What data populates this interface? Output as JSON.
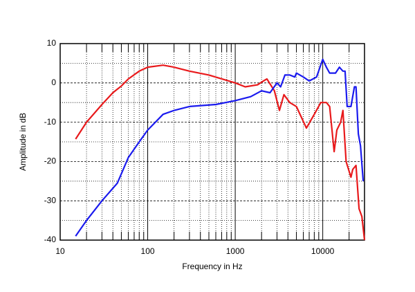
{
  "chart_data": {
    "type": "line",
    "x_label": "Frequency in Hz",
    "y_label": "Amplitude in dB",
    "log_x": true,
    "xlim": [
      10,
      30000
    ],
    "ylim": [
      -40,
      10
    ],
    "xticks": [
      10,
      100,
      1000,
      10000
    ],
    "yticks": [
      -40,
      -30,
      -20,
      -10,
      0,
      10
    ],
    "minor_xticks": [
      20,
      30,
      40,
      50,
      60,
      70,
      80,
      90,
      200,
      300,
      400,
      500,
      600,
      700,
      800,
      900,
      2000,
      3000,
      4000,
      5000,
      6000,
      7000,
      8000,
      9000,
      20000
    ],
    "minor_yticks": [
      -35,
      -25,
      -15,
      -5,
      5
    ],
    "grid": true,
    "series": [
      {
        "color": "#e8191b",
        "x": [
          15,
          20,
          30,
          40,
          50,
          60,
          80,
          100,
          150,
          200,
          300,
          500,
          1000,
          1300,
          1800,
          2100,
          2300,
          2800,
          3200,
          3600,
          4200,
          5000,
          6500,
          8000,
          9500,
          11000,
          12000,
          13500,
          14500,
          16000,
          17000,
          18500,
          21000,
          22000,
          24000,
          26000,
          28000,
          30000
        ],
        "values": [
          -14.3,
          -10,
          -5.5,
          -2.5,
          -0.8,
          1,
          3,
          4,
          4.5,
          4,
          3,
          2,
          0,
          -1,
          -0.5,
          0.5,
          1,
          -2,
          -7,
          -3,
          -5,
          -6,
          -11.5,
          -8,
          -5,
          -5,
          -6,
          -17.5,
          -12,
          -10,
          -7,
          -20,
          -24,
          -22,
          -21,
          -32,
          -34,
          -40
        ]
      },
      {
        "color": "#1a1aee",
        "x": [
          15,
          20,
          30,
          45,
          60,
          80,
          100,
          150,
          200,
          300,
          600,
          1000,
          1500,
          2000,
          2500,
          3000,
          3300,
          3700,
          4200,
          4800,
          5000,
          6000,
          7000,
          8500,
          10000,
          11000,
          12000,
          14000,
          15500,
          17000,
          18000,
          19000,
          21000,
          23000,
          24000,
          25500,
          27000,
          29000
        ],
        "values": [
          -39,
          -35,
          -30,
          -25.5,
          -19,
          -15,
          -12,
          -8,
          -7,
          -6,
          -5.5,
          -4.5,
          -3.5,
          -2,
          -2.5,
          0,
          -1,
          2,
          2,
          1.5,
          2.5,
          1.5,
          0.5,
          1.5,
          6,
          4,
          2.5,
          2.5,
          4,
          3,
          3,
          -6,
          -6,
          -1,
          -1,
          -13,
          -16,
          -25
        ]
      }
    ]
  }
}
